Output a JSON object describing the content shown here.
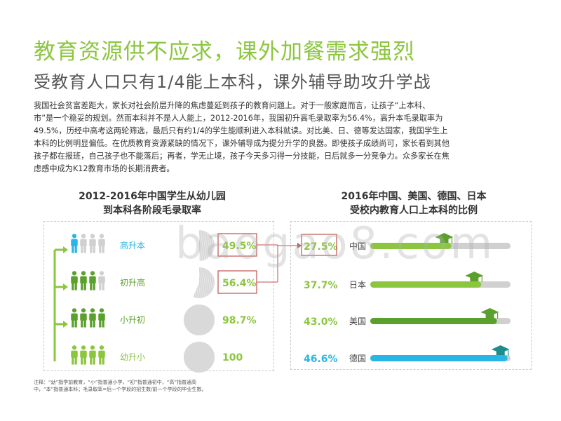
{
  "header": {
    "title": "教育资源供不应求，课外加餐需求强烈",
    "subtitle": "受教育人口只有1/4能上本科，课外辅导助攻升学战"
  },
  "intro": {
    "line1": "我国社会贫富差距大，家长对社会阶层升降的焦虑蔓延到孩子的教育问题上。对于一般家庭而言，让孩子“上本科、",
    "line2": "市”是一个稳妥的规划。然而本科并不是人人能上，2012-2016年，我国初升高毛录取率为56.4%，高升本毛录取率为",
    "line3": "49.5%，历经中高考这两轮筛选，最后只有约1/4的学生能顺利进入本科就读。对比美、日、德等发达国家，我国学生上",
    "line4": "本科的比例明显偏低。在优质教育资源紧缺的情况下，课外辅导成为提分升学的良器。即使孩子成绩尚可，家长看到其他",
    "line5": "孩子都在报班，自己孩子也不能落后；再者，学无止境，孩子今天多习得一分技能，日后就多一分竞争力。众多家长在焦",
    "line6": "虑感中成为K12教育市场的长期消费者。"
  },
  "left_chart": {
    "title_line1": "2012-2016年中国学生从幼儿园",
    "title_line2": "到本科各阶段毛录取率"
  },
  "right_chart": {
    "title_line1": "2016年中国、美国、德国、日本",
    "title_line2": "受校内教育人口上本科的比例"
  },
  "note": {
    "line1": "注释：“幼”指学前教育，“小”指普通小学，“初”指普通初中，“高”指普通高",
    "line2": "中，“本”指普通本科；毛录取率=后一个学段的招生数/前一个学段的毕业生数。"
  },
  "watermark": "baogao8.com",
  "colors": {
    "green": "#8cc63f",
    "green_dark": "#5aa02c",
    "cyan": "#29b6e6",
    "red_box": "#c0504d",
    "gray": "#d0d0d0",
    "teal_cap": "#1f8c8c"
  },
  "chart_data": [
    {
      "type": "bar",
      "categories": [
        "高升本",
        "初升高",
        "小升初",
        "幼升小"
      ],
      "values": [
        49.5,
        56.4,
        98.7,
        100
      ],
      "value_labels": [
        "49.5%",
        "56.4%",
        "98.7%",
        "100"
      ],
      "unit": "%",
      "ylim": [
        0,
        100
      ]
    },
    {
      "type": "bar",
      "categories": [
        "中国",
        "日本",
        "美国",
        "德国"
      ],
      "values": [
        27.5,
        37.7,
        43.0,
        46.6
      ],
      "value_labels": [
        "27.5%",
        "37.7%",
        "43.0%",
        "46.6%"
      ],
      "unit": "%",
      "xlim": [
        0,
        100
      ]
    }
  ]
}
